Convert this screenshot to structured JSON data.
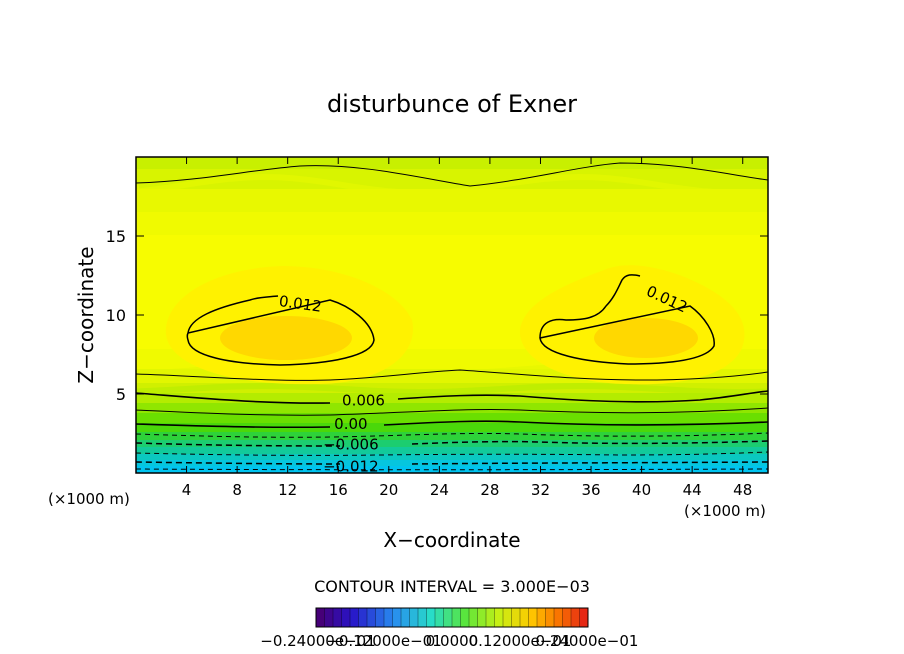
{
  "chart_data": {
    "type": "contour",
    "title": "disturbunce of Exner",
    "xlabel": "X−coordinate",
    "ylabel": "Z−coordinate",
    "x_unit_label": "(×1000 m)",
    "y_unit_label": "(×1000 m)",
    "xlim": [
      0,
      50
    ],
    "ylim": [
      0,
      20
    ],
    "x_ticks": [
      "4",
      "8",
      "12",
      "16",
      "20",
      "24",
      "28",
      "32",
      "36",
      "40",
      "44",
      "48"
    ],
    "y_ticks": [
      "5",
      "10",
      "15"
    ],
    "contour_interval_text": "CONTOUR INTERVAL = 3.000E−03",
    "contour_labels": [
      {
        "text": "0.012",
        "x": 13,
        "z": 10.7
      },
      {
        "text": "0.012",
        "x": 42,
        "z": 11.0
      },
      {
        "text": "0.006",
        "x": 18,
        "z": 4.6
      },
      {
        "text": "0.00",
        "x": 17,
        "z": 3.1
      },
      {
        "text": "−0.006",
        "x": 17,
        "z": 1.8
      },
      {
        "text": "−0.012",
        "x": 17,
        "z": 0.4
      }
    ],
    "colorbar_labels": [
      "−0.24000e−01",
      "−0.12000e−01",
      "0.0000",
      "0.12000e−01",
      "0.24000e−01"
    ],
    "grid": false,
    "field_range": [
      -0.024,
      0.024
    ]
  }
}
